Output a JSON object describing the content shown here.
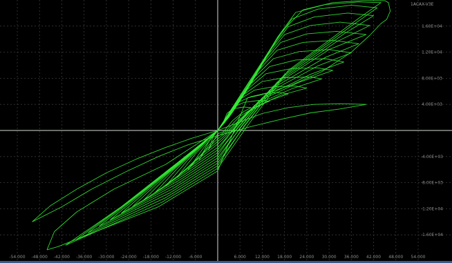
{
  "chart_data": {
    "type": "line",
    "title": "",
    "xlabel": "",
    "ylabel": "",
    "corner_label": "1ACAX-V3E",
    "xlim": [
      -54.0,
      54.0
    ],
    "ylim": [
      -20000.0,
      20000.0
    ],
    "x_tick_labels": [
      "-54.000",
      "-48.000",
      "-42.000",
      "-36.000",
      "-30.000",
      "-24.000",
      "-18.000",
      "-12.000",
      "-6.000",
      "6.000",
      "12.000",
      "18.000",
      "24.000",
      "30.000",
      "36.000",
      "42.000",
      "48.000",
      "54.000"
    ],
    "x_tick_values": [
      -54,
      -48,
      -42,
      -36,
      -30,
      -24,
      -18,
      -12,
      -6,
      6,
      12,
      18,
      24,
      30,
      36,
      42,
      48,
      54
    ],
    "y_tick_labels": [
      "1.60E+04",
      "1.20E+04",
      "8.00E+03",
      "4.00E+03",
      "-4.00E+03",
      "-8.00E+03",
      "-1.20E+04",
      "-1.60E+04"
    ],
    "y_tick_values": [
      16000,
      12000,
      8000,
      4000,
      -4000,
      -8000,
      -12000,
      -16000
    ],
    "grid": true,
    "trace_color": "#33ee33",
    "series": [
      {
        "upper": [
          [
            -2.5,
            -3000
          ],
          [
            -1.2,
            -900
          ],
          [
            0,
            0
          ],
          [
            1.2,
            800
          ],
          [
            2.5,
            2600
          ],
          [
            4,
            3300
          ],
          [
            7,
            3600
          ],
          [
            9,
            3500
          ]
        ],
        "lower": [
          [
            9,
            3500
          ],
          [
            7,
            2900
          ],
          [
            4,
            1500
          ],
          [
            1.5,
            -200
          ],
          [
            0,
            -500
          ],
          [
            -2.5,
            -3000
          ]
        ]
      },
      {
        "upper": [
          [
            -5,
            -4500
          ],
          [
            -2.5,
            -1800
          ],
          [
            0,
            0
          ],
          [
            2,
            1300
          ],
          [
            4,
            3500
          ],
          [
            7,
            4300
          ],
          [
            11,
            4600
          ],
          [
            14,
            4500
          ]
        ],
        "lower": [
          [
            14,
            4500
          ],
          [
            10,
            3600
          ],
          [
            6,
            2200
          ],
          [
            2,
            -200
          ],
          [
            0,
            -900
          ],
          [
            -2.5,
            -2300
          ],
          [
            -5,
            -4500
          ]
        ]
      },
      {
        "upper": [
          [
            -8,
            -6000
          ],
          [
            -4,
            -2800
          ],
          [
            0,
            0
          ],
          [
            2.5,
            1700
          ],
          [
            5,
            4200
          ],
          [
            9,
            5200
          ],
          [
            13,
            5700
          ],
          [
            17,
            5800
          ],
          [
            19,
            5600
          ]
        ],
        "lower": [
          [
            19,
            5600
          ],
          [
            14,
            4600
          ],
          [
            8,
            2800
          ],
          [
            2.5,
            -200
          ],
          [
            0,
            -1300
          ],
          [
            -4,
            -3400
          ],
          [
            -8,
            -6000
          ]
        ]
      },
      {
        "upper": [
          [
            -11,
            -7200
          ],
          [
            -6,
            -3600
          ],
          [
            0,
            0
          ],
          [
            3,
            2000
          ],
          [
            6,
            4800
          ],
          [
            10,
            6200
          ],
          [
            15,
            6700
          ],
          [
            21,
            6800
          ],
          [
            24,
            6500
          ]
        ],
        "lower": [
          [
            24,
            6500
          ],
          [
            17,
            5400
          ],
          [
            9,
            3300
          ],
          [
            3,
            -200
          ],
          [
            0,
            -1700
          ],
          [
            -5,
            -4000
          ],
          [
            -11,
            -7200
          ]
        ]
      },
      {
        "upper": [
          [
            -14,
            -8500
          ],
          [
            -8,
            -4500
          ],
          [
            -2,
            -1000
          ],
          [
            0,
            0
          ],
          [
            3.5,
            2400
          ],
          [
            7,
            5500
          ],
          [
            12,
            7500
          ],
          [
            18,
            8100
          ],
          [
            25,
            8200
          ],
          [
            28,
            7900
          ]
        ],
        "lower": [
          [
            28,
            7900
          ],
          [
            20,
            6400
          ],
          [
            10,
            3900
          ],
          [
            3.5,
            -200
          ],
          [
            0,
            -2100
          ],
          [
            -6,
            -4700
          ],
          [
            -14,
            -8500
          ]
        ]
      },
      {
        "upper": [
          [
            -17,
            -9600
          ],
          [
            -10,
            -5300
          ],
          [
            -3,
            -1500
          ],
          [
            0,
            0
          ],
          [
            4,
            2800
          ],
          [
            8,
            6300
          ],
          [
            13,
            8700
          ],
          [
            20,
            9500
          ],
          [
            27,
            9600
          ],
          [
            31,
            9200
          ]
        ],
        "lower": [
          [
            31,
            9200
          ],
          [
            22,
            7400
          ],
          [
            11,
            4500
          ],
          [
            4,
            -100
          ],
          [
            0,
            -2600
          ],
          [
            -7,
            -5400
          ],
          [
            -17,
            -9600
          ]
        ]
      },
      {
        "upper": [
          [
            -20,
            -10700
          ],
          [
            -12,
            -6100
          ],
          [
            -4,
            -2000
          ],
          [
            0,
            0
          ],
          [
            4,
            3200
          ],
          [
            9,
            7200
          ],
          [
            14,
            9800
          ],
          [
            21,
            10800
          ],
          [
            29,
            11000
          ],
          [
            34,
            10500
          ]
        ],
        "lower": [
          [
            34,
            10500
          ],
          [
            25,
            8600
          ],
          [
            12,
            5000
          ],
          [
            4,
            0
          ],
          [
            0,
            -3000
          ],
          [
            -8,
            -6100
          ],
          [
            -20,
            -10700
          ]
        ]
      },
      {
        "upper": [
          [
            -23,
            -11700
          ],
          [
            -14,
            -6900
          ],
          [
            -5,
            -2500
          ],
          [
            0,
            0
          ],
          [
            5,
            3700
          ],
          [
            10,
            8200
          ],
          [
            15,
            11000
          ],
          [
            22,
            12100
          ],
          [
            30,
            12400
          ],
          [
            36,
            11900
          ]
        ],
        "lower": [
          [
            36,
            11900
          ],
          [
            27,
            9900
          ],
          [
            13,
            5600
          ],
          [
            5,
            100
          ],
          [
            0,
            -3400
          ],
          [
            -9,
            -6800
          ],
          [
            -23,
            -11700
          ]
        ]
      },
      {
        "upper": [
          [
            -26,
            -12700
          ],
          [
            -16,
            -7700
          ],
          [
            -6,
            -3000
          ],
          [
            0,
            0
          ],
          [
            5,
            4200
          ],
          [
            11,
            9200
          ],
          [
            16,
            12300
          ],
          [
            23,
            13500
          ],
          [
            31,
            13800
          ],
          [
            38,
            13300
          ]
        ],
        "lower": [
          [
            38,
            13300
          ],
          [
            29,
            11200
          ],
          [
            14,
            6200
          ],
          [
            5,
            200
          ],
          [
            0,
            -3800
          ],
          [
            -10,
            -7500
          ],
          [
            -26,
            -12700
          ]
        ]
      },
      {
        "upper": [
          [
            -29,
            -13700
          ],
          [
            -18,
            -8500
          ],
          [
            -7,
            -3400
          ],
          [
            0,
            0
          ],
          [
            6,
            4700
          ],
          [
            12,
            10200
          ],
          [
            17,
            13500
          ],
          [
            24,
            14800
          ],
          [
            32,
            15200
          ],
          [
            40,
            14700
          ]
        ],
        "lower": [
          [
            40,
            14700
          ],
          [
            30,
            12400
          ],
          [
            15,
            6800
          ],
          [
            6,
            300
          ],
          [
            0,
            -4200
          ],
          [
            -11,
            -8200
          ],
          [
            -29,
            -13700
          ]
        ]
      },
      {
        "upper": [
          [
            -32,
            -14700
          ],
          [
            -20,
            -9300
          ],
          [
            -8,
            -3800
          ],
          [
            0,
            0
          ],
          [
            6,
            5200
          ],
          [
            13,
            11200
          ],
          [
            18,
            14700
          ],
          [
            25,
            16100
          ],
          [
            33,
            16600
          ],
          [
            41,
            16100
          ]
        ],
        "lower": [
          [
            41,
            16100
          ],
          [
            32,
            13600
          ],
          [
            16,
            7400
          ],
          [
            6,
            400
          ],
          [
            0,
            -4600
          ],
          [
            -12,
            -8900
          ],
          [
            -32,
            -14700
          ]
        ]
      },
      {
        "upper": [
          [
            -35,
            -15700
          ],
          [
            -22,
            -10100
          ],
          [
            -9,
            -4200
          ],
          [
            0,
            0
          ],
          [
            7,
            5700
          ],
          [
            14,
            12200
          ],
          [
            19,
            15900
          ],
          [
            26,
            17400
          ],
          [
            35,
            18000
          ],
          [
            42,
            17600
          ]
        ],
        "lower": [
          [
            42,
            17600
          ],
          [
            34,
            14800
          ],
          [
            17,
            8000
          ],
          [
            7,
            500
          ],
          [
            0,
            -5000
          ],
          [
            -13,
            -9600
          ],
          [
            -35,
            -15700
          ]
        ]
      },
      {
        "upper": [
          [
            -38,
            -16700
          ],
          [
            -24,
            -10900
          ],
          [
            -10,
            -4600
          ],
          [
            0,
            0
          ],
          [
            7,
            6200
          ],
          [
            15,
            13200
          ],
          [
            20,
            17100
          ],
          [
            27,
            18600
          ],
          [
            36,
            19200
          ],
          [
            43,
            18800
          ]
        ],
        "lower": [
          [
            43,
            18800
          ],
          [
            36,
            16000
          ],
          [
            18,
            8600
          ],
          [
            7,
            600
          ],
          [
            0,
            -5400
          ],
          [
            -14,
            -10300
          ],
          [
            -38,
            -16700
          ]
        ]
      },
      {
        "upper": [
          [
            -41,
            -17600
          ],
          [
            -26,
            -11700
          ],
          [
            -11,
            -5000
          ],
          [
            0,
            0
          ],
          [
            8,
            6700
          ],
          [
            16,
            14200
          ],
          [
            21,
            18100
          ],
          [
            29,
            19300
          ],
          [
            38,
            19700
          ],
          [
            44,
            19600
          ]
        ],
        "lower": [
          [
            44,
            19600
          ],
          [
            38,
            17200
          ],
          [
            19,
            9200
          ],
          [
            8,
            700
          ],
          [
            0,
            -5800
          ],
          [
            -15,
            -11000
          ],
          [
            -41,
            -17600
          ]
        ]
      },
      {
        "upper": [
          [
            -46,
            -18300
          ],
          [
            -44,
            -15500
          ],
          [
            -38,
            -12500
          ],
          [
            -28,
            -9000
          ],
          [
            -14,
            -5200
          ],
          [
            0,
            0
          ],
          [
            9,
            7200
          ],
          [
            17,
            15000
          ],
          [
            23,
            18500
          ],
          [
            31,
            19600
          ],
          [
            39,
            19900
          ],
          [
            45,
            19900
          ]
        ],
        "lower": [
          [
            45,
            19900
          ],
          [
            46,
            19600
          ],
          [
            46.5,
            18300
          ],
          [
            45.5,
            17000
          ],
          [
            44,
            16400
          ],
          [
            41,
            14600
          ],
          [
            36,
            12000
          ],
          [
            28,
            9000
          ],
          [
            20,
            7000
          ],
          [
            12,
            5500
          ],
          [
            8,
            5000
          ],
          [
            0,
            -6200
          ],
          [
            -16,
            -11700
          ],
          [
            -43,
            -17800
          ],
          [
            -46,
            -18300
          ]
        ]
      },
      {
        "upper": [
          [
            -50,
            -14000
          ],
          [
            -45,
            -11500
          ],
          [
            -38,
            -9000
          ],
          [
            -30,
            -6500
          ],
          [
            -22,
            -4400
          ],
          [
            -14,
            -2600
          ],
          [
            -7,
            -1200
          ],
          [
            0,
            0
          ],
          [
            6,
            1300
          ],
          [
            12,
            2600
          ],
          [
            19,
            3500
          ],
          [
            26,
            4000
          ],
          [
            33,
            4100
          ],
          [
            40,
            4000
          ]
        ],
        "lower": [
          [
            40,
            4000
          ],
          [
            33,
            3300
          ],
          [
            25,
            2700
          ],
          [
            17,
            1700
          ],
          [
            9,
            600
          ],
          [
            0,
            -800
          ],
          [
            -8,
            -2200
          ],
          [
            -16,
            -4000
          ],
          [
            -25,
            -6400
          ],
          [
            -34,
            -9000
          ],
          [
            -42,
            -11700
          ],
          [
            -50,
            -14000
          ]
        ]
      }
    ]
  }
}
